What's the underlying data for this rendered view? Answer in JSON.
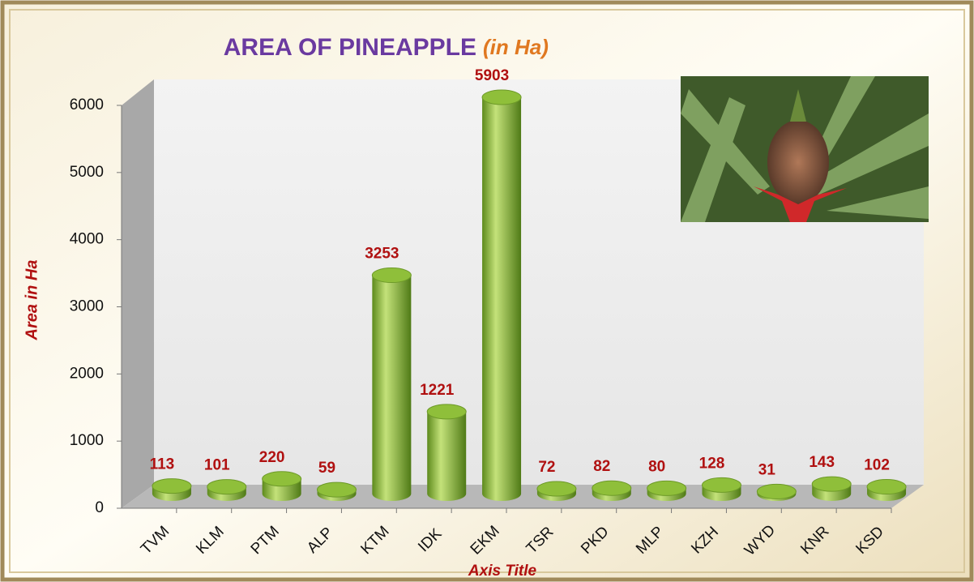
{
  "chart_data": {
    "type": "bar",
    "title": "AREA OF PINEAPPLE",
    "subtitle": "(in Ha)",
    "y_label": "Area in Ha",
    "x_label": "Axis Title",
    "categories": [
      "TVM",
      "KLM",
      "PTM",
      "ALP",
      "KTM",
      "IDK",
      "EKM",
      "TSR",
      "PKD",
      "MLP",
      "KZH",
      "WYD",
      "KNR",
      "KSD"
    ],
    "values": [
      113,
      101,
      220,
      59,
      3253,
      1221,
      5903,
      72,
      82,
      80,
      128,
      31,
      143,
      102
    ],
    "color": "#8fbf3a",
    "ylim": [
      0,
      6000
    ],
    "yticks": [
      0,
      1000,
      2000,
      3000,
      4000,
      5000,
      6000
    ]
  }
}
